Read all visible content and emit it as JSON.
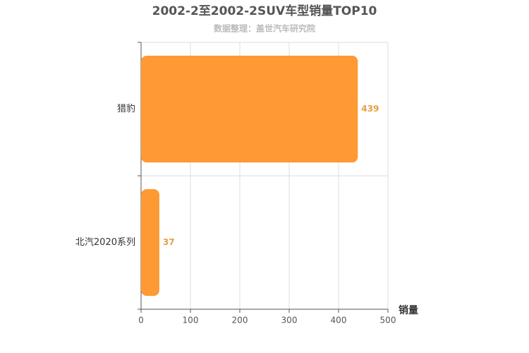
{
  "chart_data": {
    "type": "bar",
    "orientation": "horizontal",
    "title": "2002-2至2002-2SUV车型销量TOP10",
    "subtitle": "数据整理：盖世汽车研究院",
    "x_label": "销量",
    "categories": [
      "猎豹",
      "北汽2020系列"
    ],
    "values": [
      439,
      37
    ],
    "color": "#ff9933",
    "label_color": "#e8a040",
    "xlim": [
      0,
      500
    ],
    "xticks": [
      0,
      100,
      200,
      300,
      400,
      500
    ],
    "grid": true
  }
}
